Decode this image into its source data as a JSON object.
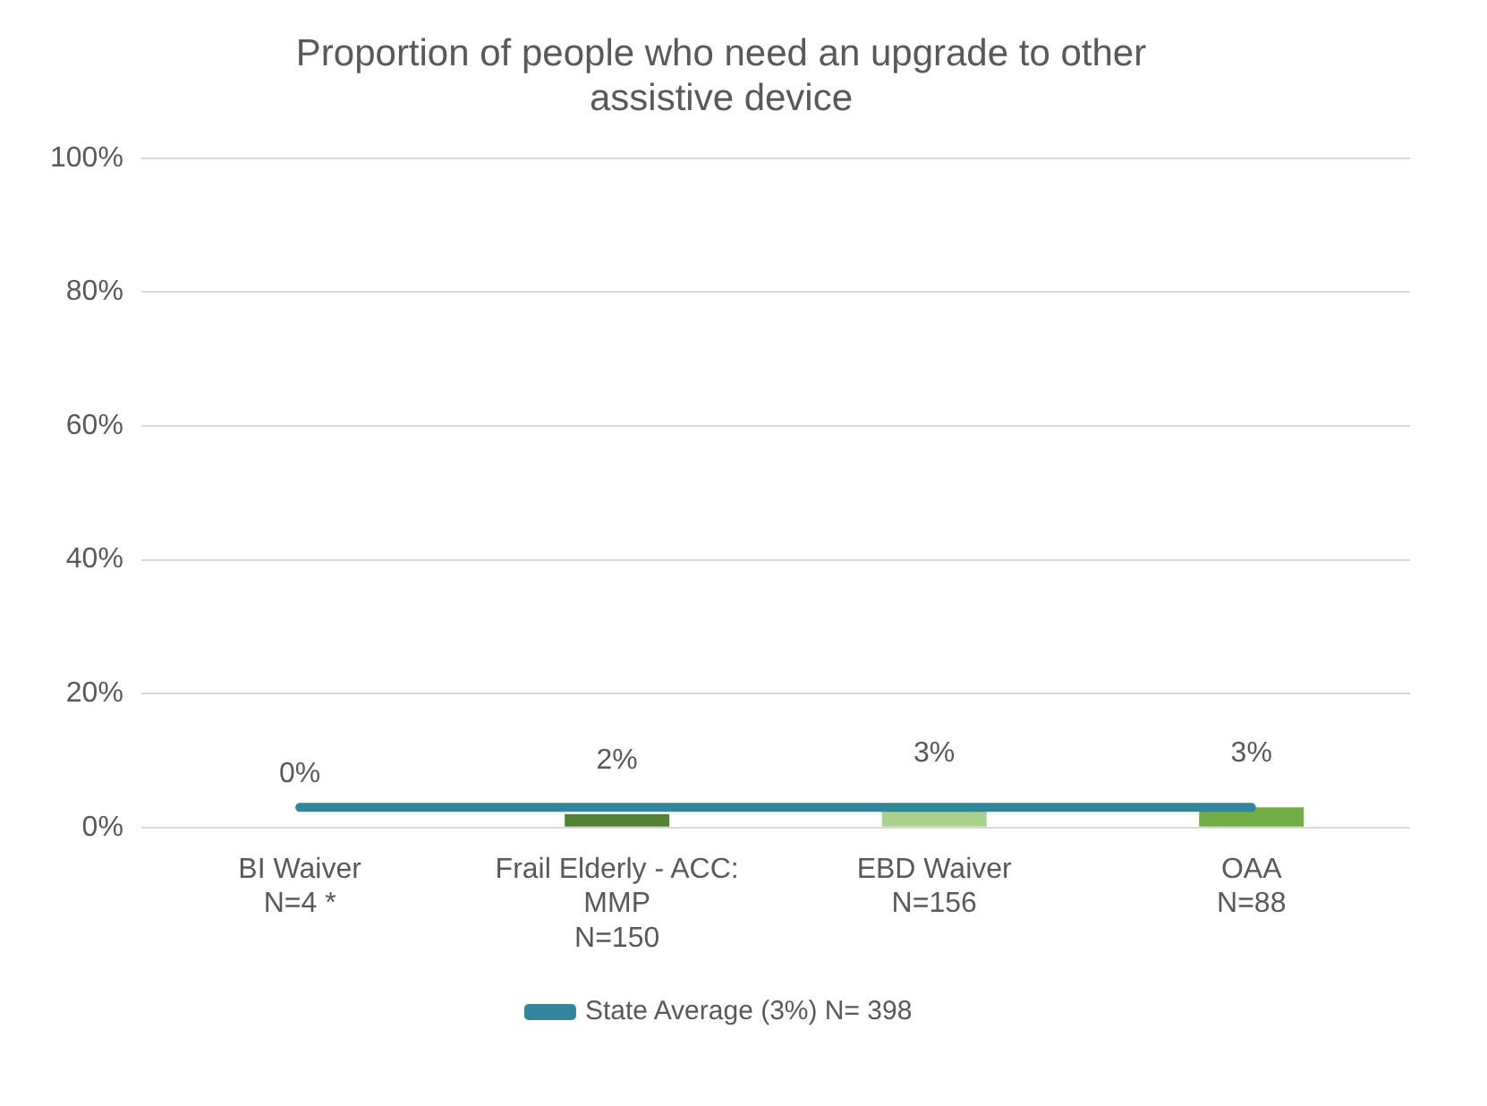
{
  "chart_data": {
    "type": "bar",
    "title": "Proportion of people who need an upgrade to other assistive device",
    "categories": [
      "BI Waiver\nN=4 *",
      "Frail Elderly - ACC:\nMMP\nN=150",
      "EBD Waiver\nN=156",
      "OAA\nN=88"
    ],
    "series": [
      {
        "values": [
          0,
          2,
          3,
          3
        ],
        "colors": [
          "#375623",
          "#548235",
          "#a9d18e",
          "#70ad47"
        ],
        "value_labels": [
          "0%",
          "2%",
          "3%",
          "3%"
        ]
      },
      {
        "type": "line",
        "name": "State Average (3%) N= 398",
        "color": "#31869b",
        "values": [
          3,
          3,
          3,
          3
        ],
        "marker": "none"
      }
    ],
    "ylim": [
      0,
      100
    ],
    "yticks": [
      {
        "value": 0,
        "label": "0%"
      },
      {
        "value": 20,
        "label": "20%"
      },
      {
        "value": 40,
        "label": "40%"
      },
      {
        "value": 60,
        "label": "60%"
      },
      {
        "value": 80,
        "label": "80%"
      },
      {
        "value": 100,
        "label": "100%"
      }
    ],
    "grid": "y",
    "legend": "bottom"
  }
}
